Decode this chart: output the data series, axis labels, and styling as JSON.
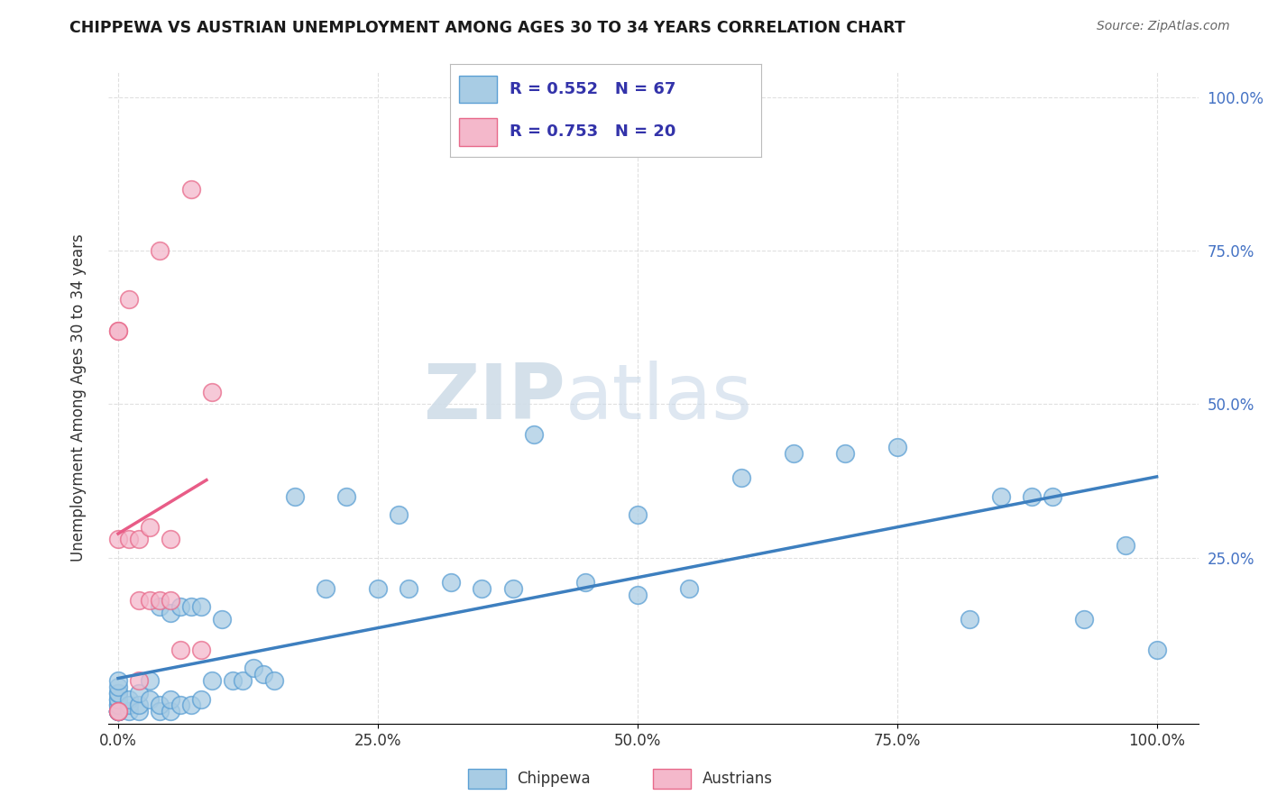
{
  "title": "CHIPPEWA VS AUSTRIAN UNEMPLOYMENT AMONG AGES 30 TO 34 YEARS CORRELATION CHART",
  "source": "Source: ZipAtlas.com",
  "ylabel": "Unemployment Among Ages 30 to 34 years",
  "watermark_zip": "ZIP",
  "watermark_atlas": "atlas",
  "chippewa_color": "#a8cce4",
  "austrian_color": "#f4b8cb",
  "chippewa_edge": "#5b9fd4",
  "austrian_edge": "#e8698a",
  "line_chippewa": "#3d7fbf",
  "line_austrian": "#e85c87",
  "legend_text_color": "#3333aa",
  "background_color": "#ffffff",
  "grid_color": "#cccccc",
  "chippewa_x": [
    0.0,
    0.0,
    0.0,
    0.0,
    0.0,
    0.0,
    0.0,
    0.0,
    0.0,
    0.0,
    0.0,
    0.0,
    0.0,
    0.0,
    0.0,
    0.01,
    0.01,
    0.01,
    0.02,
    0.02,
    0.02,
    0.03,
    0.03,
    0.04,
    0.04,
    0.04,
    0.05,
    0.05,
    0.05,
    0.06,
    0.06,
    0.07,
    0.07,
    0.08,
    0.08,
    0.09,
    0.1,
    0.11,
    0.12,
    0.13,
    0.14,
    0.15,
    0.17,
    0.2,
    0.22,
    0.25,
    0.27,
    0.28,
    0.32,
    0.35,
    0.38,
    0.4,
    0.45,
    0.5,
    0.5,
    0.55,
    0.6,
    0.65,
    0.7,
    0.75,
    0.82,
    0.85,
    0.88,
    0.9,
    0.93,
    0.97,
    1.0
  ],
  "chippewa_y": [
    0.0,
    0.0,
    0.0,
    0.0,
    0.0,
    0.0,
    0.0,
    0.01,
    0.01,
    0.02,
    0.02,
    0.03,
    0.03,
    0.04,
    0.05,
    0.0,
    0.01,
    0.02,
    0.0,
    0.01,
    0.03,
    0.02,
    0.05,
    0.0,
    0.01,
    0.17,
    0.0,
    0.02,
    0.16,
    0.01,
    0.17,
    0.01,
    0.17,
    0.02,
    0.17,
    0.05,
    0.15,
    0.05,
    0.05,
    0.07,
    0.06,
    0.05,
    0.35,
    0.2,
    0.35,
    0.2,
    0.32,
    0.2,
    0.21,
    0.2,
    0.2,
    0.45,
    0.21,
    0.32,
    0.19,
    0.2,
    0.38,
    0.42,
    0.42,
    0.43,
    0.15,
    0.35,
    0.35,
    0.35,
    0.15,
    0.27,
    0.1
  ],
  "austrian_x": [
    0.0,
    0.0,
    0.0,
    0.0,
    0.0,
    0.01,
    0.01,
    0.02,
    0.02,
    0.02,
    0.03,
    0.03,
    0.04,
    0.04,
    0.05,
    0.05,
    0.06,
    0.07,
    0.08,
    0.09
  ],
  "austrian_y": [
    0.0,
    0.0,
    0.62,
    0.62,
    0.28,
    0.28,
    0.67,
    0.05,
    0.28,
    0.18,
    0.18,
    0.3,
    0.75,
    0.18,
    0.28,
    0.18,
    0.1,
    0.85,
    0.1,
    0.52
  ],
  "xtick_vals": [
    0.0,
    0.25,
    0.5,
    0.75,
    1.0
  ],
  "xtick_labels": [
    "0.0%",
    "25.0%",
    "50.0%",
    "75.0%",
    "100.0%"
  ],
  "ytick_vals_right": [
    0.25,
    0.5,
    0.75,
    1.0
  ],
  "ytick_labels_right": [
    "25.0%",
    "50.0%",
    "75.0%",
    "100.0%"
  ]
}
